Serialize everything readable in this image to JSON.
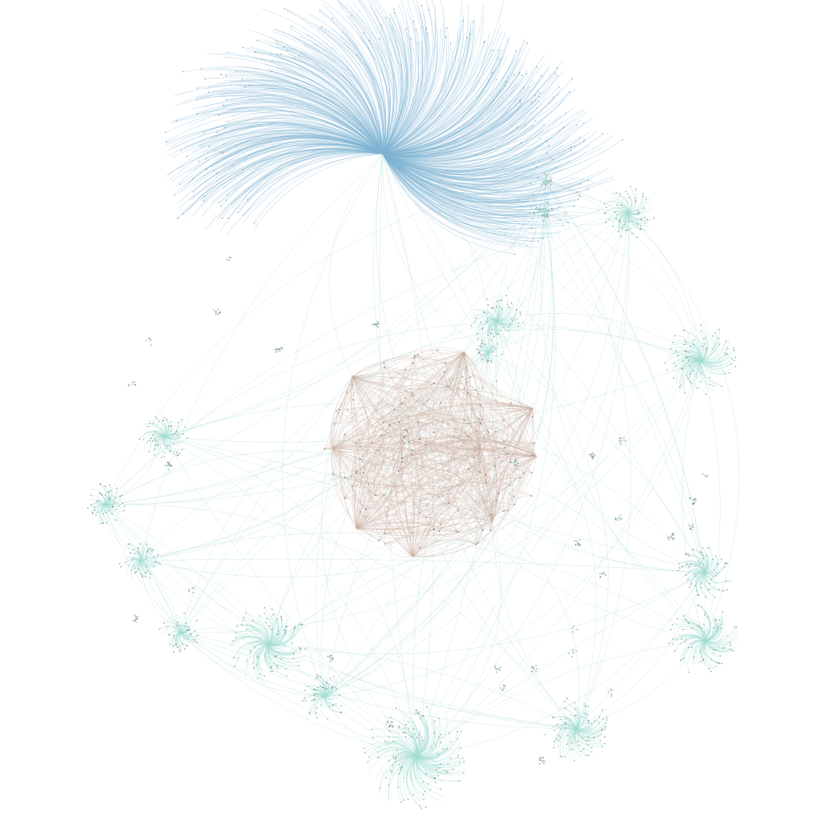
{
  "diagram": {
    "type": "network-graph",
    "labels_shown": false,
    "background": "#ffffff",
    "colors": {
      "blue_cluster_edges": "#7fb3d3",
      "core_cluster_edges": "#c9ad9f",
      "satellite_cluster_edges": "#9fdcd0",
      "inter_cluster_edges": "#a8ddd3",
      "nodes": "#3f5a58"
    },
    "clusters": [
      {
        "id": "large-blue-fan",
        "color": "blue",
        "relative_size": "largest",
        "shape": "fan"
      },
      {
        "id": "central-core",
        "color": "tan",
        "relative_size": "large",
        "shape": "dense-mesh"
      },
      {
        "id": "satellite-hubs",
        "color": "teal",
        "relative_size": "small",
        "shape": "star",
        "count": 16
      },
      {
        "id": "tiny-clusters",
        "color": "teal",
        "relative_size": "tiny",
        "shape": "dot-group",
        "count": 20
      }
    ]
  }
}
